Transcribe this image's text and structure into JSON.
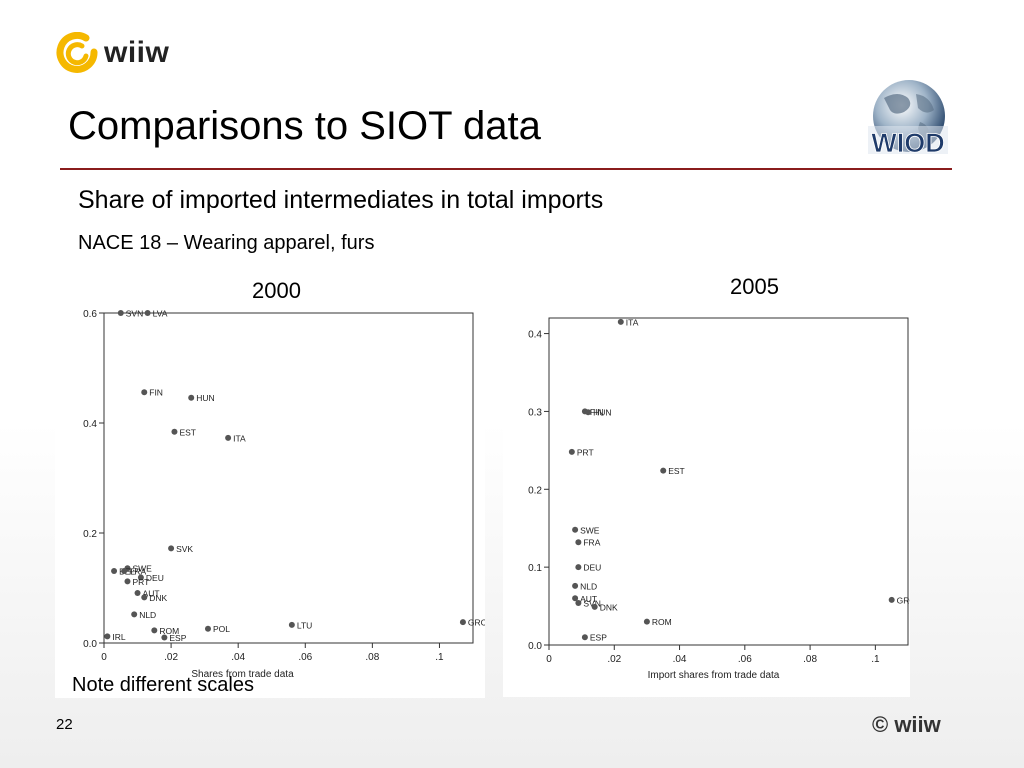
{
  "header": {
    "logo_text": "wiiw",
    "title": "Comparisons to SIOT data",
    "wiod_logo_text": "WIOD"
  },
  "subtitle": "Share of imported intermediates in total imports",
  "sector": "NACE 18 – Wearing apparel, furs",
  "note": "Note different scales",
  "footer": {
    "page_number": "22",
    "copyright": "© wiiw"
  },
  "colors": {
    "accent_rule": "#8a1c1c",
    "marker": "#555555",
    "logo_yellow": "#f5b800"
  },
  "chart_data": [
    {
      "type": "scatter",
      "title": "2000",
      "xlabel": "Shares from trade data",
      "ylabel": "",
      "xlim": [
        0,
        0.11
      ],
      "ylim": [
        0,
        0.6
      ],
      "xticks": [
        {
          "v": 0,
          "l": "0"
        },
        {
          "v": 0.02,
          "l": ".02"
        },
        {
          "v": 0.04,
          "l": ".04"
        },
        {
          "v": 0.06,
          "l": ".06"
        },
        {
          "v": 0.08,
          "l": ".08"
        },
        {
          "v": 0.1,
          "l": ".1"
        }
      ],
      "yticks": [
        {
          "v": 0,
          "l": "0.0"
        },
        {
          "v": 0.2,
          "l": "0.2"
        },
        {
          "v": 0.4,
          "l": "0.4"
        },
        {
          "v": 0.6,
          "l": "0.6"
        }
      ],
      "points": [
        {
          "label": "SVN",
          "x": 0.005,
          "y": 0.6
        },
        {
          "label": "LVA",
          "x": 0.013,
          "y": 0.6
        },
        {
          "label": "FIN",
          "x": 0.012,
          "y": 0.456
        },
        {
          "label": "HUN",
          "x": 0.026,
          "y": 0.446
        },
        {
          "label": "EST",
          "x": 0.021,
          "y": 0.384
        },
        {
          "label": "ITA",
          "x": 0.037,
          "y": 0.373
        },
        {
          "label": "SVK",
          "x": 0.02,
          "y": 0.172
        },
        {
          "label": "SWE",
          "x": 0.007,
          "y": 0.136
        },
        {
          "label": "BEL",
          "x": 0.003,
          "y": 0.131
        },
        {
          "label": "FRA",
          "x": 0.006,
          "y": 0.131
        },
        {
          "label": "DEU",
          "x": 0.011,
          "y": 0.119
        },
        {
          "label": "PRT",
          "x": 0.007,
          "y": 0.112
        },
        {
          "label": "AUT",
          "x": 0.01,
          "y": 0.091
        },
        {
          "label": "DNK",
          "x": 0.012,
          "y": 0.083
        },
        {
          "label": "NLD",
          "x": 0.009,
          "y": 0.052
        },
        {
          "label": "ROM",
          "x": 0.015,
          "y": 0.023
        },
        {
          "label": "ESP",
          "x": 0.018,
          "y": 0.01
        },
        {
          "label": "IRL",
          "x": 0.001,
          "y": 0.012
        },
        {
          "label": "POL",
          "x": 0.031,
          "y": 0.026
        },
        {
          "label": "LTU",
          "x": 0.056,
          "y": 0.033
        },
        {
          "label": "GRC",
          "x": 0.107,
          "y": 0.038
        }
      ]
    },
    {
      "type": "scatter",
      "title": "2005",
      "xlabel": "Import shares from trade data",
      "ylabel": "",
      "xlim": [
        0,
        0.11
      ],
      "ylim": [
        0,
        0.42
      ],
      "xticks": [
        {
          "v": 0,
          "l": "0"
        },
        {
          "v": 0.02,
          "l": ".02"
        },
        {
          "v": 0.04,
          "l": ".04"
        },
        {
          "v": 0.06,
          "l": ".06"
        },
        {
          "v": 0.08,
          "l": ".08"
        },
        {
          "v": 0.1,
          "l": ".1"
        }
      ],
      "yticks": [
        {
          "v": 0,
          "l": "0.0"
        },
        {
          "v": 0.1,
          "l": "0.1"
        },
        {
          "v": 0.2,
          "l": "0.2"
        },
        {
          "v": 0.3,
          "l": "0.3"
        },
        {
          "v": 0.4,
          "l": "0.4"
        }
      ],
      "points": [
        {
          "label": "ITA",
          "x": 0.022,
          "y": 0.415
        },
        {
          "label": "FIN",
          "x": 0.011,
          "y": 0.3
        },
        {
          "label": "HUN",
          "x": 0.012,
          "y": 0.299
        },
        {
          "label": "PRT",
          "x": 0.007,
          "y": 0.248
        },
        {
          "label": "EST",
          "x": 0.035,
          "y": 0.224
        },
        {
          "label": "SWE",
          "x": 0.008,
          "y": 0.148
        },
        {
          "label": "FRA",
          "x": 0.009,
          "y": 0.132
        },
        {
          "label": "DEU",
          "x": 0.009,
          "y": 0.1
        },
        {
          "label": "NLD",
          "x": 0.008,
          "y": 0.076
        },
        {
          "label": "AUT",
          "x": 0.008,
          "y": 0.06
        },
        {
          "label": "SVN",
          "x": 0.009,
          "y": 0.054
        },
        {
          "label": "DNK",
          "x": 0.014,
          "y": 0.049
        },
        {
          "label": "ROM",
          "x": 0.03,
          "y": 0.03
        },
        {
          "label": "ESP",
          "x": 0.011,
          "y": 0.01
        },
        {
          "label": "GRC",
          "x": 0.105,
          "y": 0.058
        }
      ]
    }
  ]
}
